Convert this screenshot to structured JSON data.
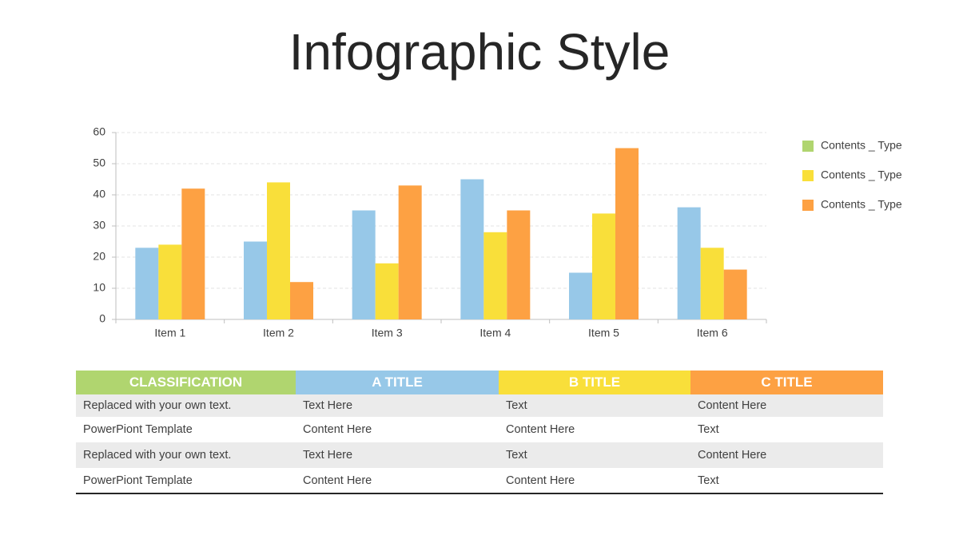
{
  "title": "Infographic Style",
  "chart_data": {
    "type": "bar",
    "categories": [
      "Item 1",
      "Item 2",
      "Item 3",
      "Item 4",
      "Item 5",
      "Item 6"
    ],
    "series": [
      {
        "name": "Contents _ Type",
        "color": "#97c8e8",
        "legend_color": "#b0d56f",
        "values": [
          23,
          25,
          35,
          45,
          15,
          36
        ]
      },
      {
        "name": "Contents _ Type",
        "color": "#f9df3a",
        "legend_color": "#f9df3a",
        "values": [
          24,
          44,
          18,
          28,
          34,
          23
        ]
      },
      {
        "name": "Contents _ Type",
        "color": "#fda143",
        "legend_color": "#fda143",
        "values": [
          42,
          12,
          43,
          35,
          55,
          16
        ]
      }
    ],
    "ylim": [
      0,
      60
    ],
    "yticks": [
      0,
      10,
      20,
      30,
      40,
      50,
      60
    ],
    "grid": true,
    "legend": "right"
  },
  "table": {
    "header": [
      "CLASSIFICATION",
      "A TITLE",
      "B TITLE",
      "C TITLE"
    ],
    "header_colors": [
      "#b0d56f",
      "#97c8e8",
      "#f9df3a",
      "#fda143"
    ],
    "rows": [
      [
        "Replaced with your own text.",
        "Text Here",
        "Text",
        "Content Here"
      ],
      [
        "PowerPiont Template",
        "Content Here",
        "Content Here",
        "Text"
      ],
      [
        "Replaced with your own text.",
        "Text Here",
        "Text",
        "Content Here"
      ],
      [
        "PowerPiont Template",
        "Content Here",
        "Content Here",
        "Text"
      ]
    ]
  }
}
